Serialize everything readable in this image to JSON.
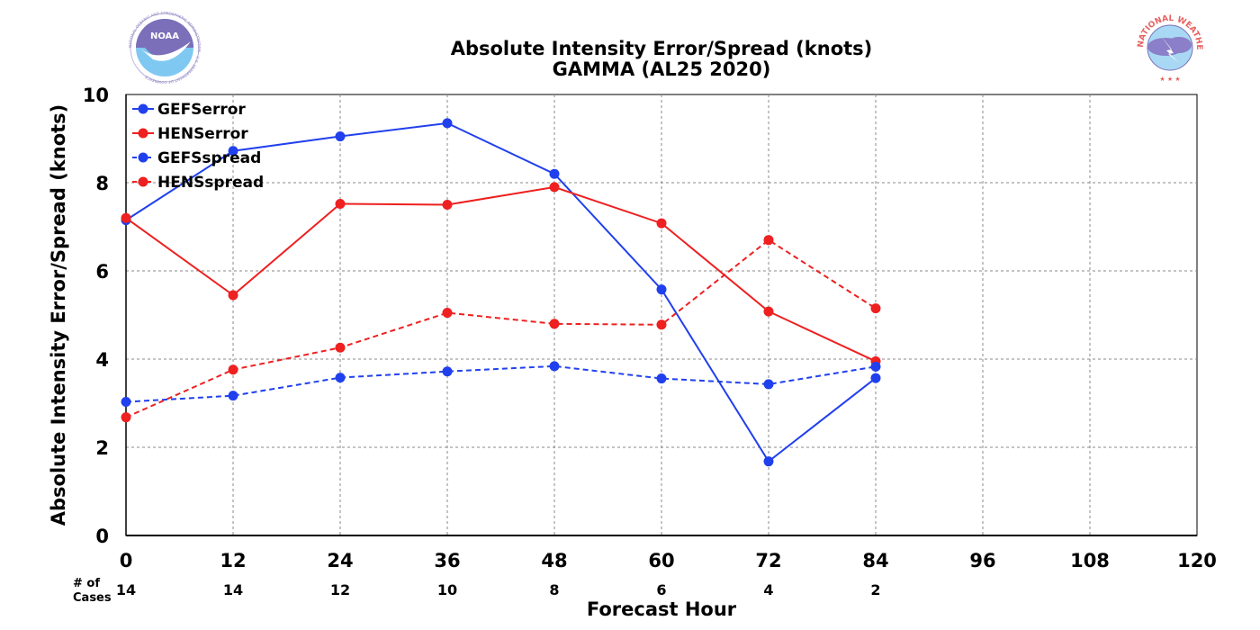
{
  "logos": {
    "left_text": "NOAA",
    "left_ring_text": "NATIONAL OCEANIC AND ATMOSPHERIC ADMINISTRATION · U.S. DEPARTMENT OF COMMERCE",
    "right_ring_text": "NATIONAL WEATHER SERVICE"
  },
  "chart_data": {
    "type": "line",
    "title": "Absolute Intensity Error/Spread (knots)",
    "subtitle": "GAMMA (AL25 2020)",
    "xlabel": "Forecast Hour",
    "ylabel": "Absolute Intensity Error/Spread (knots)",
    "xlim": [
      0,
      120
    ],
    "ylim": [
      0,
      10
    ],
    "xticks": [
      0,
      12,
      24,
      36,
      48,
      60,
      72,
      84,
      96,
      108,
      120
    ],
    "yticks": [
      0,
      2,
      4,
      6,
      8,
      10
    ],
    "grid": true,
    "legend_position": "top-left",
    "cases_header": [
      "# of",
      "Cases"
    ],
    "cases": [
      {
        "x": 0,
        "n": "14"
      },
      {
        "x": 12,
        "n": "14"
      },
      {
        "x": 24,
        "n": "12"
      },
      {
        "x": 36,
        "n": "10"
      },
      {
        "x": 48,
        "n": "8"
      },
      {
        "x": 60,
        "n": "6"
      },
      {
        "x": 72,
        "n": "4"
      },
      {
        "x": 84,
        "n": "2"
      }
    ],
    "series": [
      {
        "name": "GEFSerror",
        "color": "#2040ee",
        "dashed": false,
        "x": [
          0,
          12,
          24,
          36,
          48,
          60,
          72,
          84
        ],
        "y": [
          7.15,
          8.72,
          9.05,
          9.35,
          8.2,
          5.58,
          1.68,
          3.57
        ]
      },
      {
        "name": "HENSerror",
        "color": "#ee2020",
        "dashed": false,
        "x": [
          0,
          12,
          24,
          36,
          48,
          60,
          72,
          84
        ],
        "y": [
          7.2,
          5.45,
          7.52,
          7.5,
          7.9,
          7.08,
          5.08,
          3.95
        ]
      },
      {
        "name": "GEFSspread",
        "color": "#2040ee",
        "dashed": true,
        "x": [
          0,
          12,
          24,
          36,
          48,
          60,
          72,
          84
        ],
        "y": [
          3.03,
          3.17,
          3.58,
          3.72,
          3.84,
          3.56,
          3.43,
          3.83
        ]
      },
      {
        "name": "HENSspread",
        "color": "#ee2020",
        "dashed": true,
        "x": [
          0,
          12,
          24,
          36,
          48,
          60,
          72,
          84
        ],
        "y": [
          2.68,
          3.76,
          4.26,
          5.05,
          4.8,
          4.78,
          6.7,
          5.15
        ]
      }
    ]
  }
}
